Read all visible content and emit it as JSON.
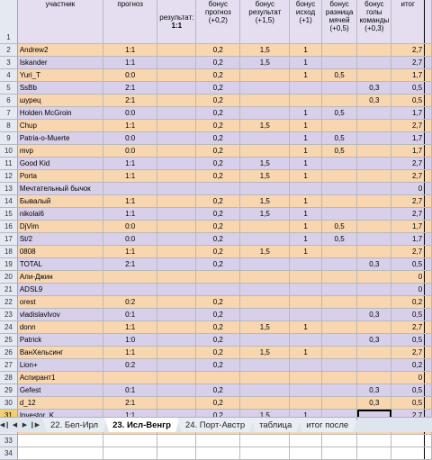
{
  "headers": {
    "participant": "участник",
    "forecast": "прогноз",
    "result_label": "результат:",
    "result_value": "1:1",
    "bonus_forecast": "бонус прогноз (+0,2)",
    "bonus_result": "бонус результат (+1,5)",
    "bonus_outcome": "бонус исход (+1)",
    "bonus_diff": "бонус разница мячей (+0,5)",
    "bonus_goals": "бонус голы команды (+0,3)",
    "total": "итог"
  },
  "rows": [
    {
      "n": "1"
    },
    {
      "n": "2",
      "name": "Andrew2",
      "f": "1:1",
      "b1": "0,2",
      "b2": "1,5",
      "b3": "1",
      "b4": "",
      "b5": "",
      "t": "2,7"
    },
    {
      "n": "3",
      "name": "Iskander",
      "f": "1:1",
      "b1": "0,2",
      "b2": "1,5",
      "b3": "1",
      "b4": "",
      "b5": "",
      "t": "2,7"
    },
    {
      "n": "4",
      "name": "Yuri_T",
      "f": "0:0",
      "b1": "0,2",
      "b2": "",
      "b3": "1",
      "b4": "0,5",
      "b5": "",
      "t": "1,7"
    },
    {
      "n": "5",
      "name": "SsBb",
      "f": "2:1",
      "b1": "0,2",
      "b2": "",
      "b3": "",
      "b4": "",
      "b5": "0,3",
      "t": "0,5"
    },
    {
      "n": "6",
      "name": "шурец",
      "f": "2:1",
      "b1": "0,2",
      "b2": "",
      "b3": "",
      "b4": "",
      "b5": "0,3",
      "t": "0,5"
    },
    {
      "n": "7",
      "name": "Holden McGroin",
      "f": "0:0",
      "b1": "0,2",
      "b2": "",
      "b3": "1",
      "b4": "0,5",
      "b5": "",
      "t": "1,7"
    },
    {
      "n": "8",
      "name": "Chup",
      "f": "1:1",
      "b1": "0,2",
      "b2": "1,5",
      "b3": "1",
      "b4": "",
      "b5": "",
      "t": "2,7"
    },
    {
      "n": "9",
      "name": "Patria-o-Muerte",
      "f": "0:0",
      "b1": "0,2",
      "b2": "",
      "b3": "1",
      "b4": "0,5",
      "b5": "",
      "t": "1,7"
    },
    {
      "n": "10",
      "name": "mvp",
      "f": "0:0",
      "b1": "0,2",
      "b2": "",
      "b3": "1",
      "b4": "0,5",
      "b5": "",
      "t": "1,7"
    },
    {
      "n": "11",
      "name": "Good Kid",
      "f": "1:1",
      "b1": "0,2",
      "b2": "1,5",
      "b3": "1",
      "b4": "",
      "b5": "",
      "t": "2,7"
    },
    {
      "n": "12",
      "name": "Porta",
      "f": "1:1",
      "b1": "0,2",
      "b2": "1,5",
      "b3": "1",
      "b4": "",
      "b5": "",
      "t": "2,7"
    },
    {
      "n": "13",
      "name": "Мечтательный бычок",
      "f": "",
      "b1": "",
      "b2": "",
      "b3": "",
      "b4": "",
      "b5": "",
      "t": "0"
    },
    {
      "n": "14",
      "name": "Бывалый",
      "f": "1:1",
      "b1": "0,2",
      "b2": "1,5",
      "b3": "1",
      "b4": "",
      "b5": "",
      "t": "2,7"
    },
    {
      "n": "15",
      "name": "nikolai6",
      "f": "1:1",
      "b1": "0,2",
      "b2": "1,5",
      "b3": "1",
      "b4": "",
      "b5": "",
      "t": "2,7"
    },
    {
      "n": "16",
      "name": "DjVim",
      "f": "0:0",
      "b1": "0,2",
      "b2": "",
      "b3": "1",
      "b4": "0,5",
      "b5": "",
      "t": "1,7"
    },
    {
      "n": "17",
      "name": "St/2",
      "f": "0:0",
      "b1": "0,2",
      "b2": "",
      "b3": "1",
      "b4": "0,5",
      "b5": "",
      "t": "1,7"
    },
    {
      "n": "18",
      "name": "0808",
      "f": "1:1",
      "b1": "0,2",
      "b2": "1,5",
      "b3": "1",
      "b4": "",
      "b5": "",
      "t": "2,7"
    },
    {
      "n": "19",
      "name": "TOTAL",
      "f": "2:1",
      "b1": "0,2",
      "b2": "",
      "b3": "",
      "b4": "",
      "b5": "0,3",
      "t": "0,5"
    },
    {
      "n": "20",
      "name": "Али-Джин",
      "f": "",
      "b1": "",
      "b2": "",
      "b3": "",
      "b4": "",
      "b5": "",
      "t": "0"
    },
    {
      "n": "21",
      "name": "ADSL9",
      "f": "",
      "b1": "",
      "b2": "",
      "b3": "",
      "b4": "",
      "b5": "",
      "t": "0"
    },
    {
      "n": "22",
      "name": "orest",
      "f": "0:2",
      "b1": "0,2",
      "b2": "",
      "b3": "",
      "b4": "",
      "b5": "",
      "t": "0,2"
    },
    {
      "n": "23",
      "name": "vladislavlvov",
      "f": "0:1",
      "b1": "0,2",
      "b2": "",
      "b3": "",
      "b4": "",
      "b5": "0,3",
      "t": "0,5"
    },
    {
      "n": "24",
      "name": "donn",
      "f": "1:1",
      "b1": "0,2",
      "b2": "1,5",
      "b3": "1",
      "b4": "",
      "b5": "",
      "t": "2,7"
    },
    {
      "n": "25",
      "name": "Patrick",
      "f": "1:0",
      "b1": "0,2",
      "b2": "",
      "b3": "",
      "b4": "",
      "b5": "0,3",
      "t": "0,5"
    },
    {
      "n": "26",
      "name": "ВанХельсинг",
      "f": "1:1",
      "b1": "0,2",
      "b2": "1,5",
      "b3": "1",
      "b4": "",
      "b5": "",
      "t": "2,7"
    },
    {
      "n": "27",
      "name": "Lion+",
      "f": "0:2",
      "b1": "0,2",
      "b2": "",
      "b3": "",
      "b4": "",
      "b5": "",
      "t": "0,2"
    },
    {
      "n": "28",
      "name": "Аспирант1",
      "f": "",
      "b1": "",
      "b2": "",
      "b3": "",
      "b4": "",
      "b5": "",
      "t": "0"
    },
    {
      "n": "29",
      "name": "Gefest",
      "f": "0:1",
      "b1": "0,2",
      "b2": "",
      "b3": "",
      "b4": "",
      "b5": "0,3",
      "t": "0,5"
    },
    {
      "n": "30",
      "name": "d_12",
      "f": "2:1",
      "b1": "0,2",
      "b2": "",
      "b3": "",
      "b4": "",
      "b5": "0,3",
      "t": "0,5"
    },
    {
      "n": "31",
      "name": "Investor_K",
      "f": "1:1",
      "b1": "0,2",
      "b2": "1,5",
      "b3": "1",
      "b4": "",
      "b5": "",
      "t": "2,7"
    },
    {
      "n": "32",
      "name": "SuperVlad",
      "f": "",
      "b1": "",
      "b2": "",
      "b3": "",
      "b4": "",
      "b5": "",
      "t": "0"
    },
    {
      "n": "33"
    },
    {
      "n": "34"
    }
  ],
  "tabs": [
    {
      "label": "22. Бел-Ирл"
    },
    {
      "label": "23. Исл-Венгр",
      "active": true
    },
    {
      "label": "24. Порт-Австр"
    },
    {
      "label": "таблица"
    },
    {
      "label": "итог после"
    }
  ],
  "nav_icons": [
    "first-sheet-icon",
    "prev-sheet-icon",
    "next-sheet-icon",
    "last-sheet-icon"
  ],
  "colors": {
    "peach": "#f8d6b0",
    "lavender": "#d8d0ea",
    "header": "#e4def0",
    "selection": "#f3cf6e"
  }
}
